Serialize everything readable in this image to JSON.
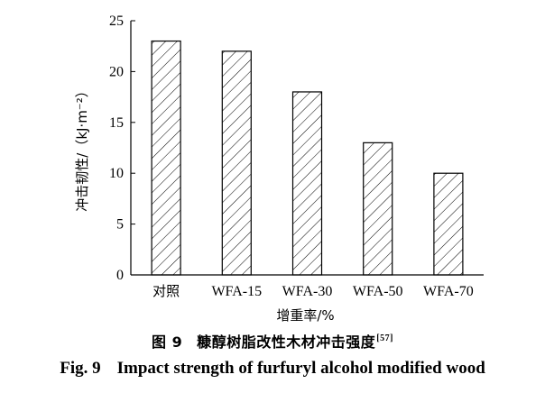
{
  "chart_data": {
    "type": "bar",
    "categories": [
      "对照",
      "WFA-15",
      "WFA-30",
      "WFA-50",
      "WFA-70"
    ],
    "values": [
      23,
      22,
      18,
      13,
      10
    ],
    "ylabel": "冲击韧性/（kJ·m⁻²）",
    "xlabel": "增重率/%",
    "ylim": [
      0,
      25
    ],
    "yticks": [
      0,
      5,
      10,
      15,
      20,
      25
    ],
    "bar_fill": "hatched",
    "colors": {
      "bar_stroke": "#000000",
      "axis": "#000000",
      "text": "#000000"
    }
  },
  "caption": {
    "cn_figure": "图 9",
    "cn_title": "糠醇树脂改性木材冲击强度",
    "cn_ref": "[57]",
    "en_figure": "Fig. 9",
    "en_title": "Impact strength of furfuryl alcohol modified wood"
  }
}
